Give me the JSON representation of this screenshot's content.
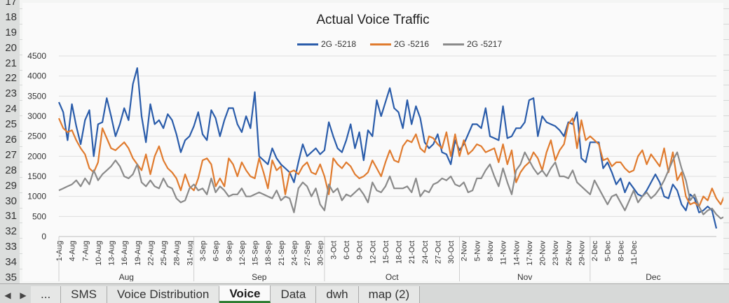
{
  "spreadsheet": {
    "row_numbers": [
      "17",
      "18",
      "19",
      "20",
      "21",
      "22",
      "23",
      "24",
      "25",
      "26",
      "27",
      "28",
      "29",
      "30",
      "31",
      "32",
      "33",
      "34",
      "35"
    ],
    "tabs": [
      "...",
      "SMS",
      "Voice Distribution",
      "Voice",
      "Data",
      "dwh",
      "map (2)"
    ],
    "active_tab": "Voice",
    "nav_left": "◀",
    "nav_right": "▶"
  },
  "chart_data": {
    "type": "line",
    "title": "Actual Voice Traffic",
    "xlabel": "",
    "ylabel": "",
    "ylim": [
      0,
      4500
    ],
    "yticks": [
      0,
      500,
      1000,
      1500,
      2000,
      2500,
      3000,
      3500,
      4000,
      4500
    ],
    "legend_position": "top",
    "x_tick_labels": [
      "1-Aug",
      "4-Aug",
      "7-Aug",
      "10-Aug",
      "13-Aug",
      "16-Aug",
      "19-Aug",
      "22-Aug",
      "25-Aug",
      "28-Aug",
      "31-Aug",
      "3-Sep",
      "6-Sep",
      "9-Sep",
      "12-Sep",
      "15-Sep",
      "18-Sep",
      "21-Sep",
      "24-Sep",
      "27-Sep",
      "30-Sep",
      "3-Oct",
      "6-Oct",
      "9-Oct",
      "12-Oct",
      "15-Oct",
      "18-Oct",
      "21-Oct",
      "24-Oct",
      "27-Oct",
      "30-Oct",
      "2-Nov",
      "5-Nov",
      "8-Nov",
      "11-Nov",
      "14-Nov",
      "17-Nov",
      "20-Nov",
      "23-Nov",
      "26-Nov",
      "29-Nov",
      "2-Dec",
      "5-Dec",
      "8-Dec",
      "11-Dec"
    ],
    "month_labels": [
      "Aug",
      "Sep",
      "Oct",
      "Nov",
      "Dec"
    ],
    "series": [
      {
        "name": "2G -5218",
        "color": "#2a5caa",
        "values": [
          3350,
          3100,
          2400,
          3300,
          2750,
          2300,
          2900,
          3150,
          2000,
          2800,
          2850,
          3450,
          3000,
          2500,
          2800,
          3200,
          2900,
          3800,
          4200,
          3000,
          2350,
          3300,
          2800,
          2900,
          2700,
          3050,
          2900,
          2550,
          2100,
          2400,
          2500,
          2750,
          3100,
          2550,
          2400,
          3150,
          2950,
          2500,
          2900,
          3200,
          3200,
          2800,
          2600,
          3000,
          2700,
          3600,
          2000,
          1900,
          1800,
          2200,
          1950,
          1800,
          1700,
          1600,
          1350,
          1850,
          2300,
          2000,
          2100,
          2200,
          2050,
          2150,
          2850,
          2500,
          2200,
          2100,
          2400,
          2800,
          2200,
          2600,
          1900,
          2650,
          2500,
          3400,
          3000,
          3350,
          3700,
          3200,
          3100,
          2700,
          3400,
          2800,
          3250,
          2950,
          2350,
          2200,
          2300,
          2550,
          2100,
          2050,
          1800,
          2400,
          2150,
          2300,
          2550,
          2800,
          2800,
          2700,
          3200,
          2500,
          2450,
          2400,
          3250,
          2450,
          2500,
          2700,
          2700,
          2850,
          3400,
          3450,
          2500,
          3000,
          2850,
          2800,
          2750,
          2650,
          2500,
          2850,
          2800,
          3100,
          1950,
          1850,
          2350,
          2350,
          2350,
          1700,
          1850,
          1600,
          1300,
          1450,
          1100,
          1350,
          1200,
          1050,
          1000,
          1150,
          1350,
          1550,
          1350,
          1000,
          950,
          1300,
          1150,
          800,
          650,
          1050,
          950,
          600,
          650,
          750,
          650,
          200
        ]
      },
      {
        "name": "2G -5216",
        "color": "#e07b2e",
        "values": [
          2950,
          2700,
          2600,
          2650,
          2400,
          2200,
          2050,
          1700,
          1600,
          1850,
          2700,
          2450,
          2200,
          2150,
          2250,
          2350,
          2200,
          1950,
          1800,
          1650,
          2050,
          1550,
          2000,
          2250,
          1900,
          1700,
          1600,
          1450,
          1150,
          1550,
          1250,
          1150,
          1450,
          1900,
          1950,
          1800,
          1250,
          1450,
          1250,
          1950,
          1800,
          1500,
          1850,
          1650,
          1500,
          1450,
          1950,
          1600,
          1200,
          1900,
          1650,
          1750,
          1050,
          1600,
          1650,
          1550,
          1750,
          1850,
          1600,
          1550,
          1800,
          1500,
          1050,
          1950,
          1800,
          1700,
          1850,
          1750,
          1550,
          1450,
          1500,
          1600,
          1900,
          1700,
          1500,
          1850,
          2150,
          1900,
          1850,
          2250,
          2400,
          2350,
          2550,
          2200,
          2100,
          2500,
          2450,
          2300,
          2200,
          2600,
          2000,
          2550,
          2000,
          2400,
          2050,
          2150,
          2300,
          2250,
          2100,
          2150,
          2200,
          1850,
          2300,
          1800,
          2150,
          1350,
          1600,
          1750,
          1850,
          2100,
          1950,
          1650,
          2100,
          2400,
          1900,
          2150,
          2300,
          2800,
          2950,
          2200,
          2900,
          2400,
          2500,
          2400,
          2300,
          1900,
          1950,
          1750,
          1850,
          1850,
          1700,
          1600,
          1650,
          2000,
          2150,
          1800,
          2050,
          1900,
          1750,
          2200,
          1600,
          2100,
          1400,
          1600,
          1000,
          800,
          850,
          750,
          1000,
          900,
          1200,
          950,
          800,
          1050,
          550,
          600,
          650
        ]
      },
      {
        "name": "2G -5217",
        "color": "#8a8a8a",
        "values": [
          1150,
          1200,
          1250,
          1300,
          1400,
          1250,
          1450,
          1300,
          1650,
          1400,
          1550,
          1650,
          1750,
          1900,
          1750,
          1500,
          1450,
          1550,
          1800,
          1350,
          1250,
          1400,
          1250,
          1200,
          1450,
          1250,
          1200,
          950,
          850,
          900,
          1200,
          1300,
          1150,
          1200,
          1050,
          1450,
          1100,
          1250,
          1150,
          1000,
          1050,
          1050,
          1200,
          1000,
          1000,
          1050,
          1100,
          1050,
          1000,
          950,
          1150,
          900,
          1000,
          950,
          600,
          1200,
          1350,
          1250,
          1000,
          1200,
          800,
          650,
          1300,
          1100,
          1200,
          900,
          1050,
          1000,
          1100,
          1200,
          1050,
          850,
          1350,
          1150,
          1100,
          1250,
          1500,
          1200,
          1200,
          1200,
          1250,
          1100,
          1450,
          1000,
          1150,
          1100,
          1300,
          1350,
          1450,
          1400,
          1500,
          1300,
          1250,
          1350,
          1100,
          1150,
          1450,
          1450,
          1650,
          1800,
          1500,
          1250,
          1700,
          1350,
          1050,
          1650,
          1800,
          2100,
          1900,
          1700,
          1550,
          1650,
          1500,
          1700,
          1850,
          1500,
          1500,
          1450,
          1650,
          1350,
          1250,
          1150,
          1050,
          1400,
          1200,
          1000,
          800,
          1000,
          1050,
          850,
          650,
          900,
          1150,
          850,
          1000,
          1100,
          950,
          1050,
          1200,
          1400,
          1650,
          1900,
          2100,
          1700,
          1400,
          900,
          1050,
          750,
          550,
          650,
          700,
          550,
          450,
          500,
          350
        ]
      }
    ]
  }
}
